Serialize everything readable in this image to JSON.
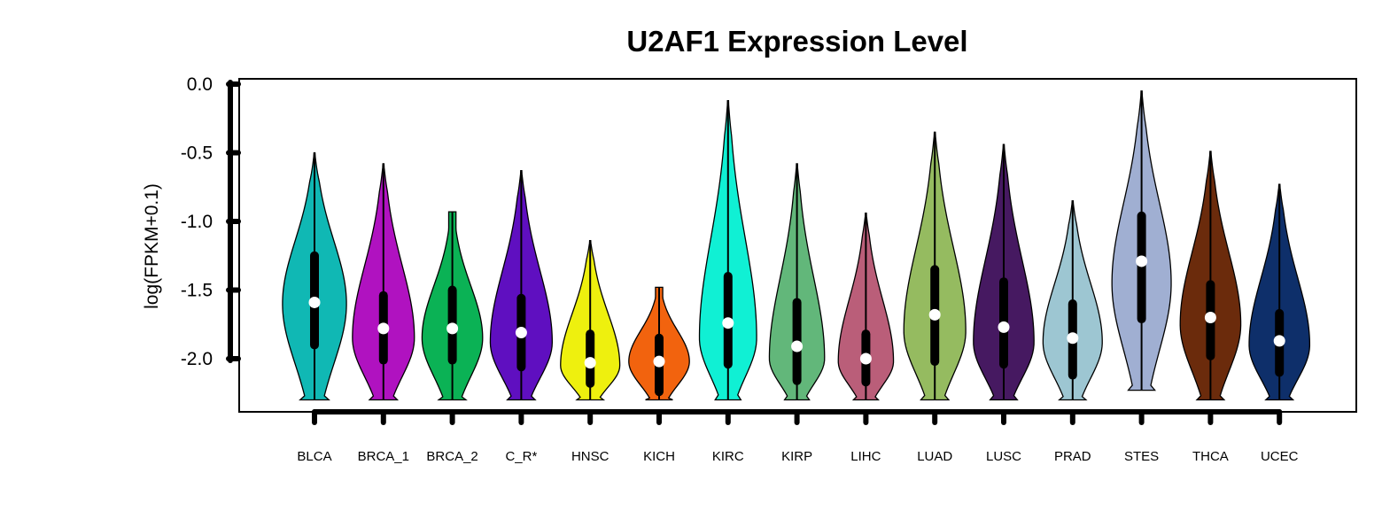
{
  "chart_data": {
    "type": "violin",
    "title": "U2AF1 Expression Level",
    "ylabel": "log(FPKM+0.1)",
    "xlabel": "",
    "ylim": [
      -2.4,
      0.03
    ],
    "yticks": [
      0.0,
      -0.5,
      -1.0,
      -1.5,
      -2.0
    ],
    "ytick_labels": [
      "0.0",
      "-0.5",
      "-1.0",
      "-1.5",
      "-2.0"
    ],
    "grid": false,
    "legend": "none",
    "categories": [
      "BLCA",
      "BRCA_1",
      "BRCA_2",
      "C_R*",
      "HNSC",
      "KICH",
      "KIRC",
      "KIRP",
      "LIHC",
      "LUAD",
      "LUSC",
      "PRAD",
      "STES",
      "THCA",
      "UCEC"
    ],
    "series": [
      {
        "category": "BLCA",
        "color": "#10B8B4",
        "min": -2.3,
        "max": -0.5,
        "q1": -1.9,
        "median": -1.59,
        "q3": -1.25,
        "wlow": -2.3,
        "whigh": -0.5,
        "peak": -1.6,
        "width": 0.95,
        "flat_top": false
      },
      {
        "category": "BRCA_1",
        "color": "#B012C0",
        "min": -2.3,
        "max": -0.58,
        "q1": -2.01,
        "median": -1.78,
        "q3": -1.54,
        "wlow": -2.3,
        "whigh": -0.58,
        "peak": -1.85,
        "width": 0.92,
        "flat_top": false
      },
      {
        "category": "BRCA_2",
        "color": "#0BB255",
        "min": -2.3,
        "max": -0.93,
        "q1": -2.01,
        "median": -1.78,
        "q3": -1.5,
        "wlow": -2.3,
        "whigh": -0.93,
        "peak": -1.85,
        "width": 0.9,
        "flat_top": true
      },
      {
        "category": "C_R*",
        "color": "#5F0FC0",
        "min": -2.3,
        "max": -0.63,
        "q1": -2.06,
        "median": -1.81,
        "q3": -1.56,
        "wlow": -2.3,
        "whigh": -0.63,
        "peak": -1.88,
        "width": 0.92,
        "flat_top": false
      },
      {
        "category": "HNSC",
        "color": "#EEF00E",
        "min": -2.3,
        "max": -1.14,
        "q1": -2.18,
        "median": -2.03,
        "q3": -1.82,
        "wlow": -2.3,
        "whigh": -1.14,
        "peak": -2.05,
        "width": 0.88,
        "flat_top": false
      },
      {
        "category": "KICH",
        "color": "#F2630E",
        "min": -2.3,
        "max": -1.48,
        "q1": -2.24,
        "median": -2.02,
        "q3": -1.85,
        "wlow": -2.3,
        "whigh": -1.48,
        "peak": -2.02,
        "width": 0.9,
        "flat_top": true
      },
      {
        "category": "KIRC",
        "color": "#10F0D4",
        "min": -2.3,
        "max": -0.12,
        "q1": -2.04,
        "median": -1.74,
        "q3": -1.4,
        "wlow": -2.3,
        "whigh": -0.12,
        "peak": -1.85,
        "width": 0.85,
        "flat_top": false
      },
      {
        "category": "KIRP",
        "color": "#62B77A",
        "min": -2.3,
        "max": -0.58,
        "q1": -2.16,
        "median": -1.91,
        "q3": -1.59,
        "wlow": -2.3,
        "whigh": -0.58,
        "peak": -2.0,
        "width": 0.82,
        "flat_top": false
      },
      {
        "category": "LIHC",
        "color": "#BA5E79",
        "min": -2.3,
        "max": -0.94,
        "q1": -2.17,
        "median": -2.0,
        "q3": -1.82,
        "wlow": -2.3,
        "whigh": -0.94,
        "peak": -2.02,
        "width": 0.82,
        "flat_top": false
      },
      {
        "category": "LUAD",
        "color": "#95BB60",
        "min": -2.3,
        "max": -0.35,
        "q1": -2.02,
        "median": -1.68,
        "q3": -1.35,
        "wlow": -2.3,
        "whigh": -0.35,
        "peak": -1.8,
        "width": 0.92,
        "flat_top": false
      },
      {
        "category": "LUSC",
        "color": "#461961",
        "min": -2.3,
        "max": -0.44,
        "q1": -2.04,
        "median": -1.77,
        "q3": -1.44,
        "wlow": -2.3,
        "whigh": -0.44,
        "peak": -1.88,
        "width": 0.9,
        "flat_top": false
      },
      {
        "category": "PRAD",
        "color": "#9DC6D2",
        "min": -2.3,
        "max": -0.85,
        "q1": -2.12,
        "median": -1.85,
        "q3": -1.6,
        "wlow": -2.3,
        "whigh": -0.85,
        "peak": -1.88,
        "width": 0.88,
        "flat_top": false
      },
      {
        "category": "STES",
        "color": "#A0AFD2",
        "min": -2.23,
        "max": -0.05,
        "q1": -1.71,
        "median": -1.29,
        "q3": -0.96,
        "wlow": -2.23,
        "whigh": -0.05,
        "peak": -1.45,
        "width": 0.88,
        "flat_top": false
      },
      {
        "category": "THCA",
        "color": "#6B2B0C",
        "min": -2.3,
        "max": -0.49,
        "q1": -1.98,
        "median": -1.7,
        "q3": -1.46,
        "wlow": -2.3,
        "whigh": -0.49,
        "peak": -1.75,
        "width": 0.9,
        "flat_top": false
      },
      {
        "category": "UCEC",
        "color": "#0E2F6A",
        "min": -2.3,
        "max": -0.73,
        "q1": -2.1,
        "median": -1.87,
        "q3": -1.67,
        "wlow": -2.3,
        "whigh": -0.73,
        "peak": -1.9,
        "width": 0.9,
        "flat_top": false
      }
    ]
  }
}
